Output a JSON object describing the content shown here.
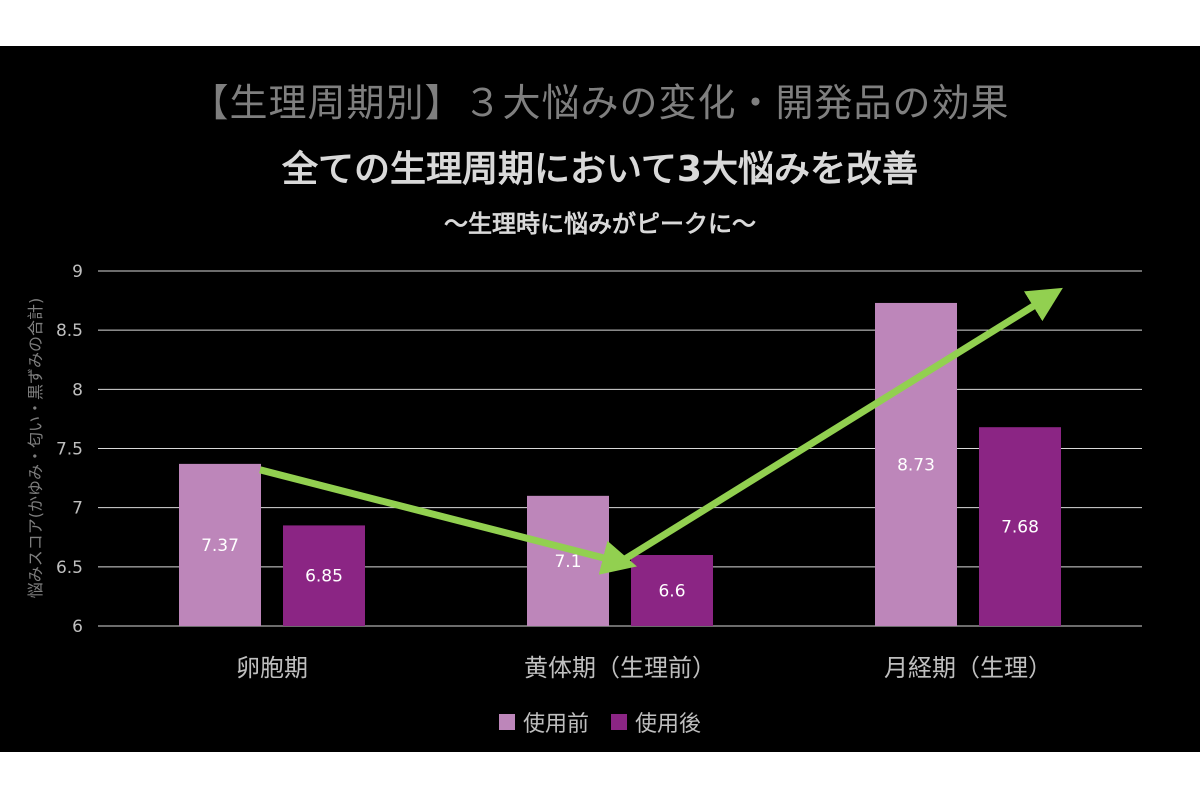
{
  "chart_data": {
    "type": "bar",
    "title": "【生理周期別】３大悩みの変化・開発品の効果",
    "headline": "全ての生理周期において3大悩みを改善",
    "subtitle": "～生理時に悩みがピークに～",
    "ylabel": "悩みスコア(かゆみ・匂い・黒ずみの合計)",
    "xlabel": "",
    "ylim": [
      6,
      9
    ],
    "yticks": [
      6,
      6.5,
      7,
      7.5,
      8,
      8.5,
      9
    ],
    "ytick_labels": [
      "6",
      "6.5",
      "7",
      "7.5",
      "8",
      "8.5",
      "9"
    ],
    "grid": true,
    "legend_position": "bottom",
    "categories": [
      "卵胞期",
      "黄体期（生理前）",
      "月経期（生理）"
    ],
    "series": [
      {
        "name": "使用前",
        "values": [
          7.37,
          7.1,
          8.73
        ],
        "labels": [
          "7.37",
          "7.1",
          "8.73"
        ],
        "color": "#bd86ba"
      },
      {
        "name": "使用後",
        "values": [
          6.85,
          6.6,
          7.68
        ],
        "labels": [
          "6.85",
          "6.6",
          "7.68"
        ],
        "color": "#8b2584"
      }
    ],
    "annotation_arrow": {
      "color": "#92d050",
      "points": [
        [
          0,
          7.32
        ],
        [
          1,
          6.54
        ],
        [
          2,
          8.7
        ]
      ]
    }
  },
  "colors": {
    "background": "#000000",
    "gridline": "#d9d9d9",
    "text": "#bfbfbf",
    "arrow": "#92d050"
  }
}
